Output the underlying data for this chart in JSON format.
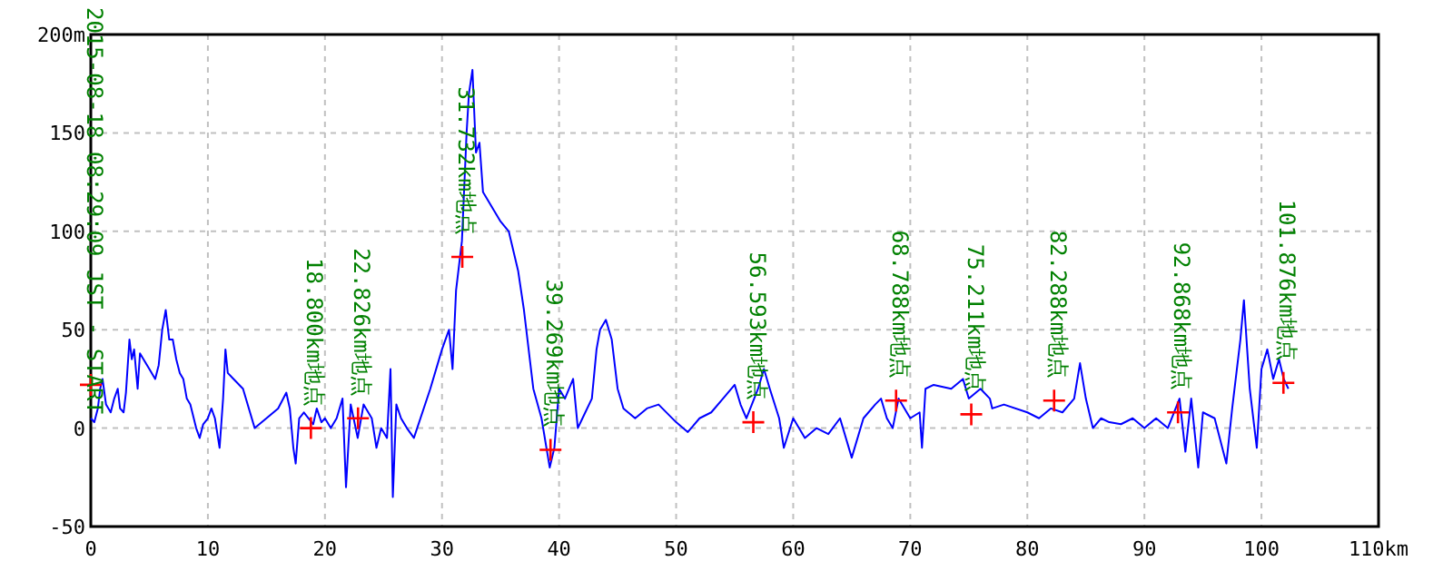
{
  "chart_data": {
    "type": "line",
    "series": [
      {
        "color": "#0000ff",
        "x": [
          0,
          0.3,
          0.6,
          0.8,
          1.0,
          1.3,
          1.7,
          2.0,
          2.3,
          2.5,
          2.8,
          3.0,
          3.3,
          3.5,
          3.7,
          4.0,
          4.2,
          4.5,
          5.0,
          5.5,
          5.8,
          6.1,
          6.4,
          6.7,
          7.0,
          7.3,
          7.6,
          7.9,
          8.2,
          8.5,
          9.0,
          9.3,
          9.6,
          10.0,
          10.3,
          10.6,
          11.0,
          11.3,
          11.5,
          11.7,
          13.0,
          14.0,
          16.0,
          16.7,
          17.0,
          17.3,
          17.5,
          17.8,
          18.2,
          19.0,
          19.3,
          19.7,
          20.0,
          20.5,
          21.0,
          21.5,
          21.8,
          22.2,
          22.8,
          23.3,
          24.0,
          24.4,
          24.8,
          25.3,
          25.6,
          25.8,
          26.1,
          26.5,
          27.0,
          27.6,
          29.0,
          30.0,
          30.6,
          30.9,
          31.2,
          31.7,
          32.1,
          32.3,
          32.6,
          32.9,
          33.2,
          33.5,
          35.0,
          35.7,
          36.5,
          37.0,
          37.8,
          38.5,
          39.2,
          39.6,
          40.0,
          40.5,
          41.2,
          41.6,
          42.0,
          42.8,
          43.2,
          43.5,
          44.0,
          44.5,
          45.0,
          45.5,
          46.5,
          47.5,
          48.5,
          50.0,
          51.0,
          52.0,
          53.0,
          54.0,
          55.0,
          55.5,
          56.0,
          57.0,
          57.5,
          58.0,
          58.8,
          59.2,
          60.0,
          61.0,
          62.0,
          63.0,
          64.0,
          65.0,
          66.0,
          67.0,
          67.5,
          68.0,
          68.5,
          69.0,
          70.0,
          70.8,
          71.0,
          71.3,
          72.0,
          73.5,
          74.5,
          75.0,
          76.0,
          76.8,
          77.0,
          78.0,
          80.0,
          81.0,
          82.0,
          83.0,
          84.0,
          84.5,
          85.0,
          85.6,
          86.3,
          87.0,
          88.0,
          89.0,
          90.0,
          91.0,
          92.0,
          93.0,
          93.5,
          94.0,
          94.6,
          95.0,
          96.0,
          97.0,
          97.5,
          98.2,
          98.5,
          99.0,
          99.6,
          100.0,
          100.5,
          101.0,
          101.5,
          101.9,
          102.3
        ],
        "values": [
          5,
          3,
          10,
          20,
          25,
          12,
          8,
          15,
          20,
          10,
          8,
          18,
          45,
          35,
          40,
          20,
          38,
          35,
          30,
          25,
          32,
          50,
          60,
          45,
          45,
          35,
          28,
          25,
          15,
          12,
          0,
          -5,
          2,
          5,
          10,
          5,
          -10,
          15,
          40,
          28,
          20,
          0,
          10,
          18,
          10,
          -10,
          -18,
          5,
          8,
          2,
          10,
          3,
          5,
          0,
          5,
          15,
          -30,
          12,
          -5,
          12,
          5,
          -10,
          0,
          -5,
          30,
          -35,
          12,
          5,
          0,
          -5,
          20,
          40,
          50,
          30,
          70,
          95,
          150,
          170,
          182,
          140,
          145,
          120,
          105,
          100,
          80,
          60,
          20,
          5,
          -20,
          -10,
          20,
          15,
          25,
          0,
          5,
          15,
          40,
          50,
          55,
          45,
          20,
          10,
          5,
          10,
          12,
          3,
          -2,
          5,
          8,
          15,
          22,
          12,
          5,
          20,
          30,
          20,
          5,
          -10,
          5,
          -5,
          0,
          -3,
          5,
          -15,
          5,
          12,
          15,
          5,
          0,
          15,
          5,
          8,
          -10,
          20,
          22,
          20,
          25,
          15,
          20,
          15,
          10,
          12,
          8,
          5,
          10,
          8,
          15,
          33,
          15,
          0,
          5,
          3,
          2,
          5,
          0,
          5,
          0,
          15,
          -12,
          15,
          -20,
          8,
          5,
          -18,
          10,
          45,
          65,
          20,
          -10,
          30,
          40,
          25,
          35,
          25,
          20
        ]
      },
      {
        "type": "scatter",
        "color": "#ff0000",
        "marker": "cross",
        "x": [
          0,
          18.8,
          22.826,
          31.732,
          39.269,
          56.593,
          68.788,
          75.211,
          82.288,
          92.868,
          101.876
        ],
        "values": [
          22,
          0,
          5,
          87,
          -11,
          3,
          14,
          7,
          14,
          8,
          23
        ]
      }
    ],
    "xlim": [
      0,
      110
    ],
    "ylim": [
      -50,
      200
    ],
    "xticks": [
      0,
      10,
      20,
      30,
      40,
      50,
      60,
      70,
      80,
      90,
      100,
      {
        "value": 110,
        "label": "110km"
      }
    ],
    "yticks": [
      -50,
      0,
      50,
      100,
      150,
      {
        "value": 200,
        "label": "200m"
      }
    ],
    "grid": true,
    "annotations": [
      {
        "text": "2015-08-18 08:29:09 JST - START",
        "x": 0,
        "y": 22
      },
      {
        "text": "18.800km地点",
        "x": 18.8,
        "y": 0
      },
      {
        "text": "22.826km地点",
        "x": 22.826,
        "y": 5
      },
      {
        "text": "31.732km地点",
        "x": 31.732,
        "y": 87
      },
      {
        "text": "39.269km地点",
        "x": 39.269,
        "y": -11
      },
      {
        "text": "56.593km地点",
        "x": 56.593,
        "y": 3
      },
      {
        "text": "68.788km地点",
        "x": 68.788,
        "y": 14
      },
      {
        "text": "75.211km地点",
        "x": 75.211,
        "y": 7
      },
      {
        "text": "82.288km地点",
        "x": 82.288,
        "y": 14
      },
      {
        "text": "92.868km地点",
        "x": 92.868,
        "y": 8
      },
      {
        "text": "101.876km地点",
        "x": 101.876,
        "y": 23
      }
    ]
  }
}
